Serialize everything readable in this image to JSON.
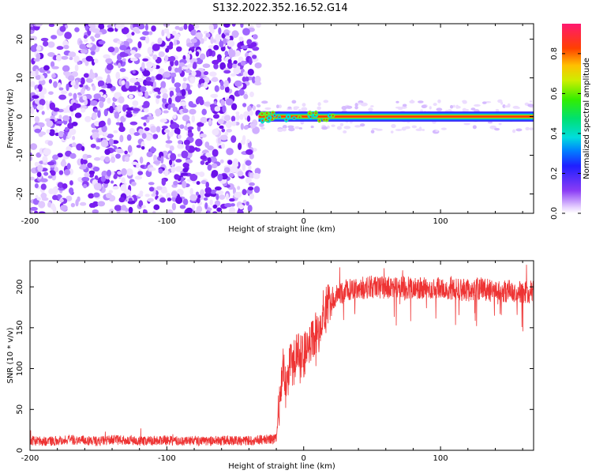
{
  "title": "S132.2022.352.16.52.G14",
  "chart_data": [
    {
      "type": "heatmap",
      "xlabel": "Height of straight line (km)",
      "ylabel": "Frequency (Hz)",
      "xlim": [
        -200,
        168
      ],
      "ylim": [
        -25,
        24
      ],
      "x_ticks": [
        -200,
        -100,
        0,
        100
      ],
      "y_ticks": [
        -20,
        -10,
        0,
        10,
        20
      ],
      "colorbar": {
        "label": "Normalized spectral amplitude",
        "range": [
          0,
          0.95
        ],
        "ticks": [
          0.0,
          0.2,
          0.4,
          0.6,
          0.8
        ]
      },
      "regions": [
        {
          "x_range": [
            -200,
            -33
          ],
          "freq_range": [
            -25,
            24
          ],
          "amplitude": [
            0.05,
            0.3
          ],
          "pattern": "noise"
        },
        {
          "x_range": [
            -33,
            168
          ],
          "freq_center": 0,
          "freq_halfwidth": 1.0,
          "amplitude": [
            0.6,
            0.95
          ],
          "pattern": "narrowband line"
        },
        {
          "x_range": [
            -33,
            168
          ],
          "freq_range": [
            -4,
            4
          ],
          "amplitude": [
            0.05,
            0.15
          ],
          "pattern": "sparse sidelobe"
        }
      ]
    },
    {
      "type": "line",
      "xlabel": "Height of straight line (km)",
      "ylabel": "SNR (10 * v/v)",
      "xlim": [
        -200,
        168
      ],
      "ylim": [
        0,
        232
      ],
      "x_ticks": [
        -200,
        -100,
        0,
        100
      ],
      "y_ticks": [
        0,
        50,
        100,
        150,
        200
      ],
      "color": "#ee3333",
      "series": [
        {
          "x": [
            -200,
            -190,
            -180,
            -170,
            -160,
            -150,
            -140,
            -130,
            -120,
            -110,
            -100,
            -90,
            -80,
            -70,
            -60,
            -50,
            -40,
            -30,
            -20,
            -17,
            -15,
            -12,
            -10,
            -8,
            -5,
            0,
            5,
            10,
            15,
            20,
            25,
            30,
            40,
            50,
            60,
            70,
            80,
            90,
            100,
            110,
            120,
            130,
            140,
            150,
            160,
            168
          ],
          "values": [
            12,
            11,
            12,
            13,
            12,
            11,
            13,
            12,
            11,
            12,
            12,
            11,
            12,
            11,
            12,
            12,
            12,
            13,
            14,
            70,
            100,
            85,
            110,
            100,
            120,
            115,
            130,
            145,
            175,
            182,
            190,
            195,
            198,
            200,
            199,
            200,
            198,
            199,
            200,
            197,
            196,
            198,
            194,
            195,
            193,
            194
          ]
        }
      ]
    }
  ]
}
